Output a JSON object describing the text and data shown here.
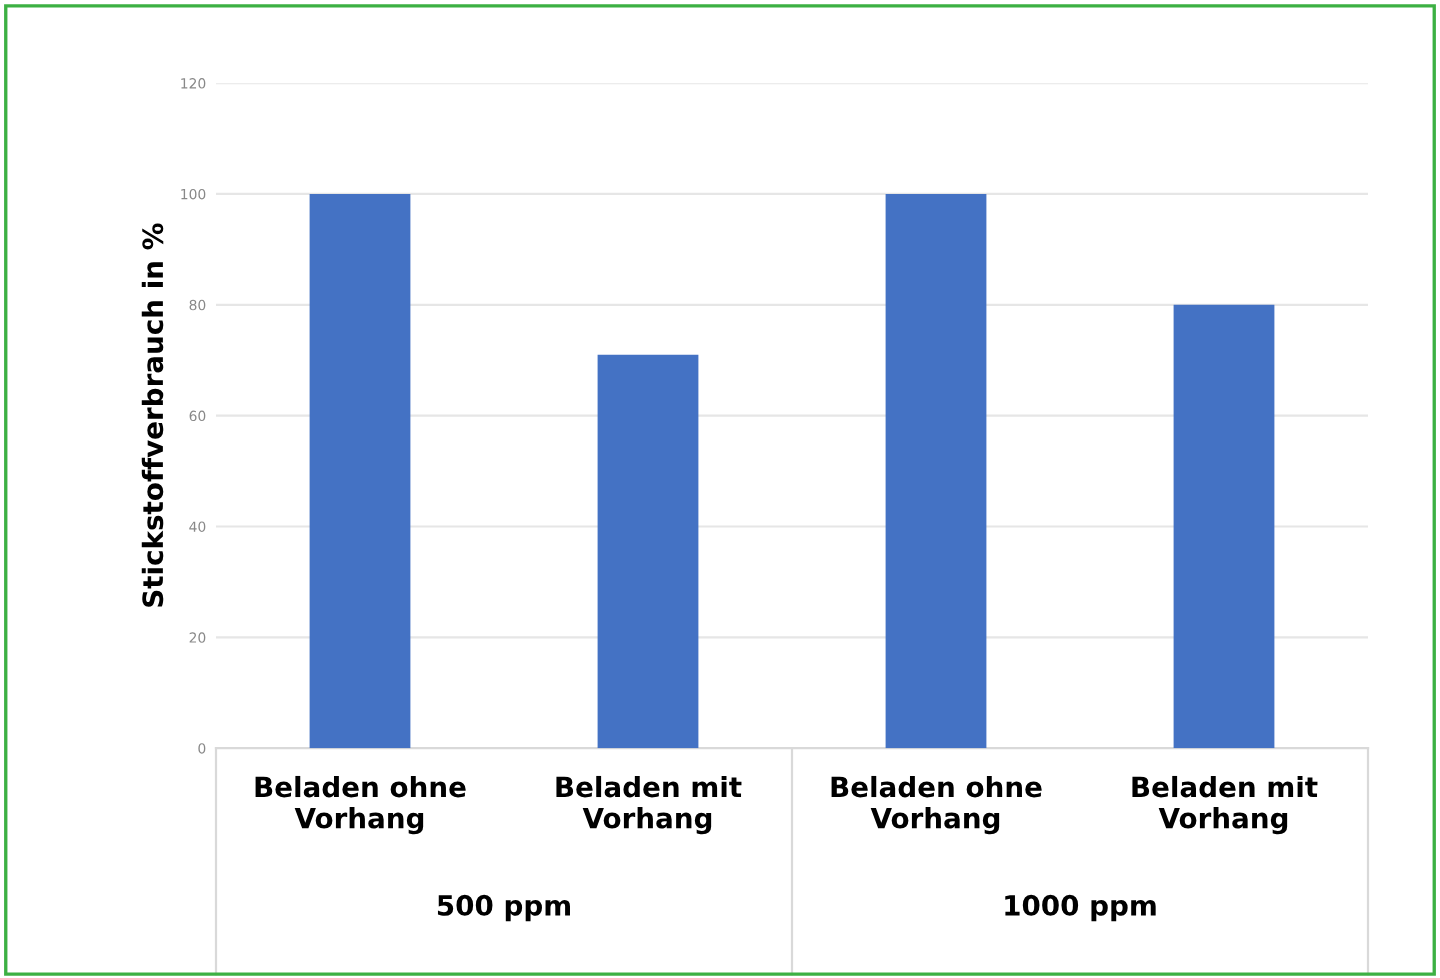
{
  "chart_data": {
    "type": "bar",
    "ylabel": "Stickstoffverbrauch in %",
    "categories": [
      "Beladen ohne\nVorhang",
      "Beladen mit\nVorhang",
      "Beladen ohne\nVorhang",
      "Beladen mit\nVorhang"
    ],
    "values": [
      100,
      71,
      100,
      80
    ],
    "color": "#4472c4",
    "ylim": [
      0,
      120
    ],
    "yticks": [
      0,
      20,
      40,
      60,
      80,
      100,
      120
    ],
    "grid": "y",
    "annotations": [
      "500 ppm",
      "1000 ppm"
    ]
  }
}
